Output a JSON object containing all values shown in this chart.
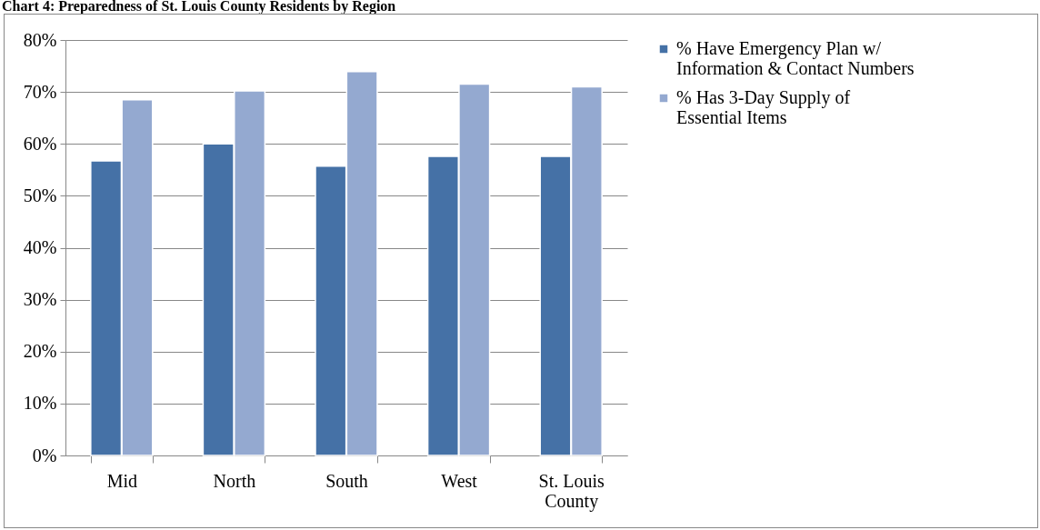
{
  "chart_data": {
    "type": "bar",
    "title": "Chart 4: Preparedness of St. Louis County Residents by Region",
    "categories": [
      "Mid",
      "North",
      "South",
      "West",
      "St. Louis County"
    ],
    "series": [
      {
        "name": "% Have Emergency Plan w/ Information & Contact Numbers",
        "color": "#4571a6",
        "values": [
          56.7,
          60.0,
          55.7,
          57.6,
          57.6
        ]
      },
      {
        "name": "% Has 3-Day Supply of Essential Items",
        "color": "#94a9d0",
        "values": [
          68.5,
          70.2,
          73.9,
          71.5,
          71.0
        ]
      }
    ],
    "ylim": [
      0,
      80
    ],
    "yticks": [
      {
        "value": 0,
        "label": "0%"
      },
      {
        "value": 10,
        "label": "10%"
      },
      {
        "value": 20,
        "label": "20%"
      },
      {
        "value": 30,
        "label": "30%"
      },
      {
        "value": 40,
        "label": "40%"
      },
      {
        "value": 50,
        "label": "50%"
      },
      {
        "value": 60,
        "label": "60%"
      },
      {
        "value": 70,
        "label": "70%"
      },
      {
        "value": 80,
        "label": "80%"
      }
    ],
    "grid": "y",
    "legend": "right"
  }
}
